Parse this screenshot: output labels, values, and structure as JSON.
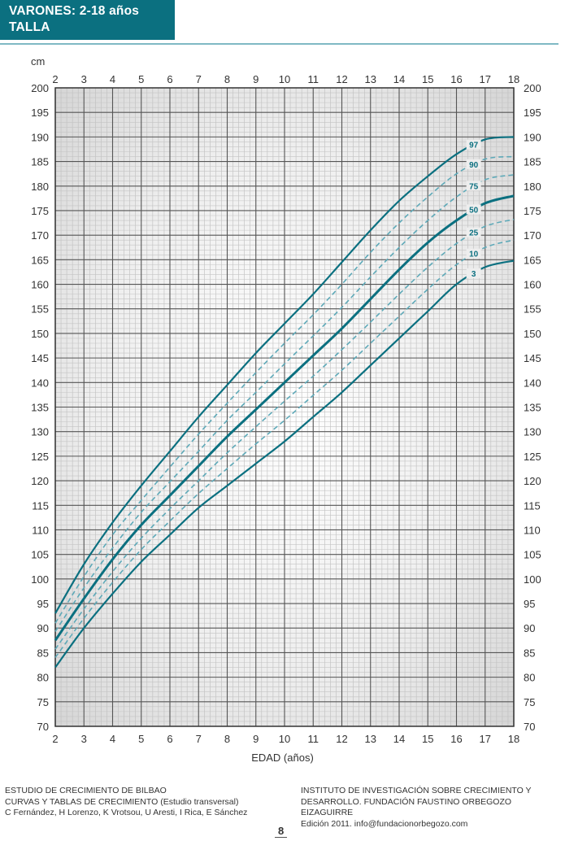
{
  "header": {
    "line1": "VARONES: 2-18 años",
    "line2": "TALLA",
    "color": "#0b7080"
  },
  "axis": {
    "y_unit": "cm",
    "x_label": "EDAD (años)"
  },
  "footer": {
    "left": [
      "ESTUDIO DE CRECIMIENTO DE BILBAO",
      "CURVAS Y TABLAS DE CRECIMIENTO (Estudio transversal)",
      "C Fernández, H Lorenzo, K Vrotsou, U Aresti, I Rica, E Sánchez"
    ],
    "right": [
      "INSTITUTO DE INVESTIGACIÓN SOBRE CRECIMIENTO Y",
      "DESARROLLO. FUNDACIÓN FAUSTINO ORBEGOZO EIZAGUIRRE",
      "Edición 2011. info@fundacionorbegozo.com"
    ],
    "page": "8"
  },
  "chart_data": {
    "type": "line",
    "title": "VARONES: 2-18 años — TALLA",
    "xlabel": "EDAD (años)",
    "ylabel": "cm",
    "xlim": [
      2,
      18
    ],
    "ylim": [
      70,
      200
    ],
    "x_ticks": [
      2,
      3,
      4,
      5,
      6,
      7,
      8,
      9,
      10,
      11,
      12,
      13,
      14,
      15,
      16,
      17,
      18
    ],
    "y_ticks": [
      70,
      75,
      80,
      85,
      90,
      95,
      100,
      105,
      110,
      115,
      120,
      125,
      130,
      135,
      140,
      145,
      150,
      155,
      160,
      165,
      170,
      175,
      180,
      185,
      190,
      195,
      200
    ],
    "grid": true,
    "x": [
      2,
      3,
      4,
      5,
      6,
      7,
      8,
      9,
      10,
      11,
      12,
      13,
      14,
      15,
      16,
      17,
      18
    ],
    "series": [
      {
        "name": "97",
        "style": "solid",
        "values": [
          93,
          103,
          111.5,
          119,
          126,
          133,
          139.5,
          146,
          152,
          158,
          164.5,
          171,
          177,
          182,
          186.5,
          189.5,
          190
        ]
      },
      {
        "name": "90",
        "style": "dashed",
        "values": [
          91,
          100.5,
          109,
          116,
          122.8,
          129.5,
          135.8,
          142,
          148,
          153.8,
          160,
          166.5,
          172.5,
          177.8,
          182.5,
          185.5,
          186
        ]
      },
      {
        "name": "75",
        "style": "dashed",
        "values": [
          89.3,
          98.2,
          106.3,
          113.6,
          119.8,
          126,
          132.3,
          138,
          143.8,
          149.5,
          155.3,
          161.5,
          167.5,
          173,
          177.8,
          181.3,
          182.3
        ]
      },
      {
        "name": "50",
        "style": "bold",
        "values": [
          87.5,
          96,
          104,
          111,
          117,
          123,
          129,
          134.5,
          140,
          145.5,
          151,
          157,
          163,
          168.5,
          173,
          176.5,
          178
        ]
      },
      {
        "name": "25",
        "style": "dashed",
        "values": [
          85.7,
          93.9,
          101.5,
          108.3,
          114.3,
          120,
          125.7,
          131,
          136.2,
          141.3,
          146.7,
          152.3,
          158,
          163.5,
          168.3,
          171.8,
          173.2
        ]
      },
      {
        "name": "10",
        "style": "dashed",
        "values": [
          84,
          92,
          99.3,
          106,
          111.8,
          117.4,
          122.5,
          127.5,
          132.3,
          137.4,
          142.5,
          148,
          153.5,
          159,
          164,
          167.5,
          169
        ]
      },
      {
        "name": "3",
        "style": "solid",
        "values": [
          82,
          90,
          97,
          103.5,
          109,
          114.5,
          119,
          123.5,
          128,
          133,
          138,
          143.5,
          149,
          154.5,
          160,
          163.5,
          164.8
        ]
      }
    ],
    "line_color": "#0b7080",
    "dashed_color": "#5ea9b8"
  }
}
